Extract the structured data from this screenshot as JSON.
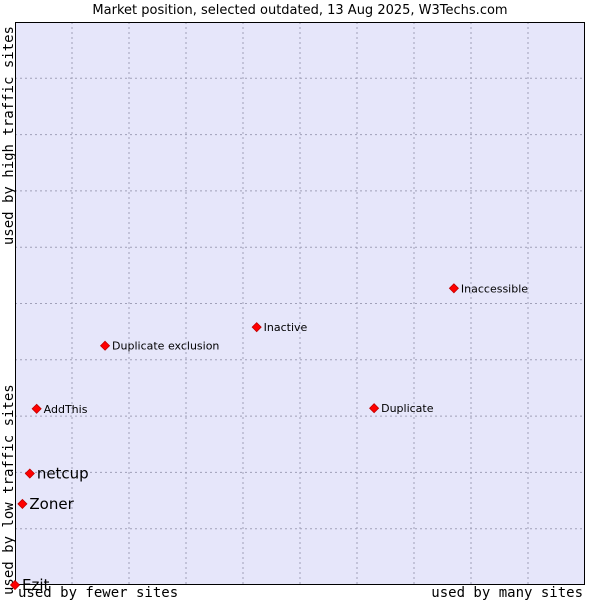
{
  "chart_data": {
    "type": "scatter",
    "title": "Market position, selected outdated, 13 Aug 2025, W3Techs.com",
    "x_axis": {
      "left_label": "used by fewer sites",
      "right_label": "used by many sites"
    },
    "y_axis": {
      "bottom_label": "used by low traffic sites",
      "top_label": "used by high traffic sites"
    },
    "grid": true,
    "xlim": [
      0,
      100
    ],
    "ylim": [
      0,
      100
    ],
    "colors": {
      "plot_background": "#e6e6fa",
      "grid": "#a0a0b8",
      "marker": "#ff0000",
      "marker_edge": "#c00000"
    },
    "points": [
      {
        "label": "Ezit",
        "x": 0.0,
        "y": 0.0,
        "emphasis": true
      },
      {
        "label": "Zoner",
        "x": 1.3,
        "y": 14.4,
        "emphasis": true
      },
      {
        "label": "netcup",
        "x": 2.6,
        "y": 19.8,
        "emphasis": true
      },
      {
        "label": "AddThis",
        "x": 3.8,
        "y": 31.3,
        "emphasis": false
      },
      {
        "label": "Duplicate exclusion",
        "x": 15.8,
        "y": 42.5,
        "emphasis": false
      },
      {
        "label": "Inactive",
        "x": 42.4,
        "y": 45.8,
        "emphasis": false
      },
      {
        "label": "Duplicate",
        "x": 63.0,
        "y": 31.4,
        "emphasis": false
      },
      {
        "label": "Inaccessible",
        "x": 77.0,
        "y": 52.7,
        "emphasis": false
      }
    ]
  }
}
